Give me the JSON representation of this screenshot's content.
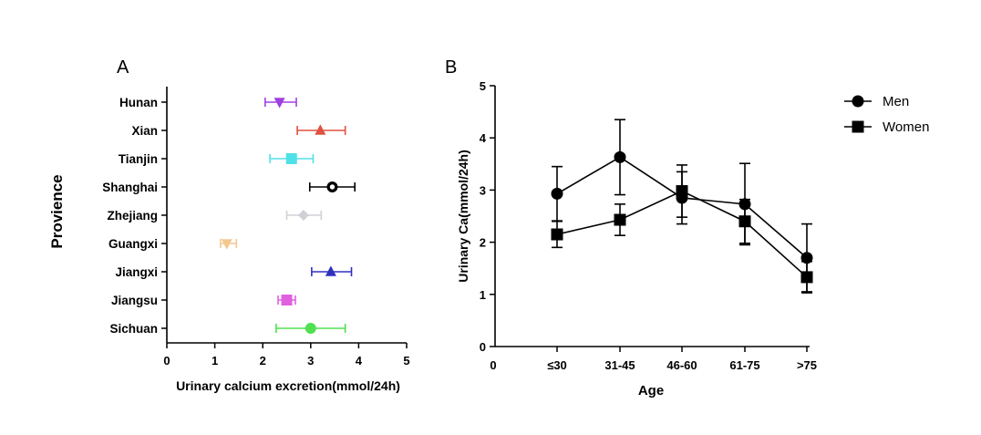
{
  "chart_data": [
    {
      "panel_label": "A",
      "type": "forest",
      "title": "",
      "xlabel": "Urinary calcium excretion(mmol/24h)",
      "ylabel": "Provience",
      "xlim": [
        0,
        5
      ],
      "xticks": [
        "0",
        "1",
        "2",
        "3",
        "4",
        "5"
      ],
      "categories": [
        "Hunan",
        "Xian",
        "Tianjin",
        "Shanghai",
        "Zhejiang",
        "Guangxi",
        "Jiangxi",
        "Jiangsu",
        "Sichuan"
      ],
      "values": [
        2.35,
        3.2,
        2.6,
        3.45,
        2.85,
        1.25,
        3.42,
        2.5,
        3.0
      ],
      "err_low": [
        2.05,
        2.72,
        2.15,
        2.98,
        2.5,
        1.12,
        3.02,
        2.32,
        2.28
      ],
      "err_high": [
        2.7,
        3.72,
        3.05,
        3.92,
        3.22,
        1.45,
        3.85,
        2.68,
        3.72
      ],
      "colors": [
        "#a040e0",
        "#e05040",
        "#50e0e8",
        "#000000",
        "#d0d0d8",
        "#f4c890",
        "#3030c0",
        "#e060e0",
        "#50e050"
      ],
      "markers": [
        "triangle-down",
        "triangle-up",
        "square",
        "circle-dot",
        "diamond",
        "triangle-down",
        "triangle-up",
        "square",
        "circle"
      ]
    },
    {
      "panel_label": "B",
      "type": "line",
      "title": "",
      "xlabel": "Age",
      "ylabel": "Urinary Ca(mmol/24h)",
      "ylim": [
        0,
        5
      ],
      "yticks": [
        "0",
        "1",
        "2",
        "3",
        "4",
        "5"
      ],
      "x_origin_label": "0",
      "categories": [
        "≤30",
        "31-45",
        "46-60",
        "61-75",
        ">75"
      ],
      "legend_position": "top-right",
      "series": [
        {
          "name": "Men",
          "marker": "circle",
          "values": [
            2.93,
            3.63,
            2.85,
            2.73,
            1.7
          ],
          "err": [
            0.52,
            0.72,
            0.5,
            0.78,
            0.65
          ]
        },
        {
          "name": "Women",
          "marker": "square",
          "values": [
            2.15,
            2.43,
            2.98,
            2.4,
            1.33
          ],
          "err": [
            0.25,
            0.3,
            0.5,
            0.42,
            0.3
          ]
        }
      ]
    }
  ]
}
